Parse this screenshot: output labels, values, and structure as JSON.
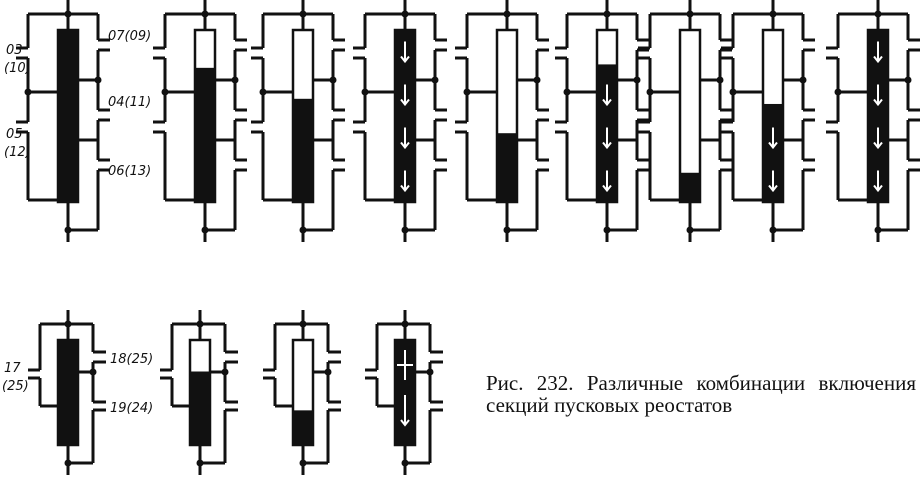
{
  "caption": "Рис. 232. Различные комбинации включения секций пусковых реостатов",
  "labels": {
    "l03": "03",
    "l10": "(10)",
    "l07": "07(09)",
    "l04": "04(11)",
    "l05": "05",
    "l12": "(12)",
    "l06": "06(13)",
    "l17": "17",
    "l25": "(25)",
    "l18": "18(25)",
    "l19": "19(24)"
  },
  "colors": {
    "ink": "#111111",
    "paper": "#ffffff"
  },
  "diagrams_top_filled_fraction": [
    1,
    0.78,
    0.6,
    1,
    0.4,
    0.8,
    0.17,
    0.57,
    1
  ],
  "diagrams_top_arrows": [
    false,
    false,
    false,
    true,
    false,
    true,
    false,
    true,
    true
  ],
  "diagrams_bottom_filled_fraction": [
    1,
    0.7,
    0.33,
    1
  ],
  "diagrams_bottom_arrows": [
    false,
    false,
    false,
    true
  ]
}
